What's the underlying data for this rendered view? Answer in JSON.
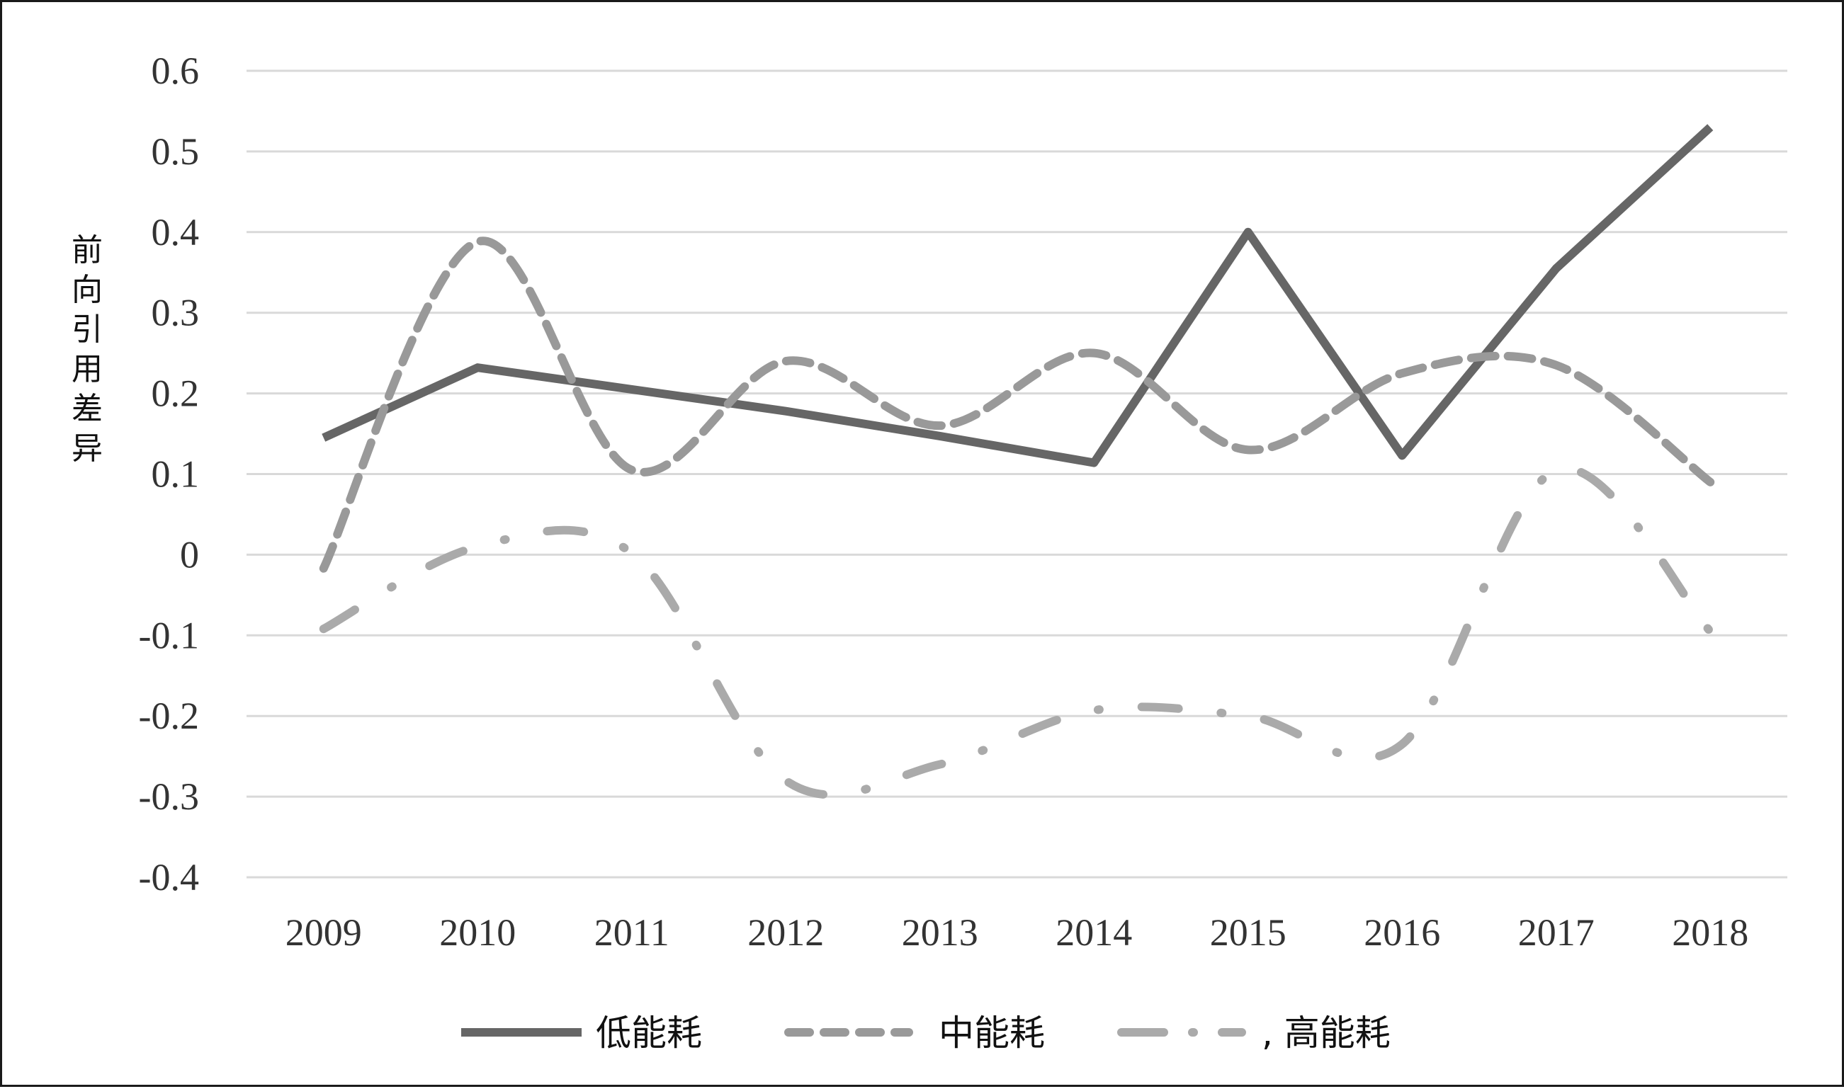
{
  "chart_data": {
    "type": "line",
    "title": "",
    "xlabel": "",
    "ylabel": "前向引用差异",
    "categories": [
      "2009",
      "2010",
      "2011",
      "2012",
      "2013",
      "2014",
      "2015",
      "2016",
      "2017",
      "2018"
    ],
    "y_ticks": [
      "0.6",
      "0.5",
      "0.4",
      "0.3",
      "0.2",
      "0.1",
      "0",
      "-0.1",
      "-0.2",
      "-0.3",
      "-0.4"
    ],
    "ylim": [
      -0.4,
      0.6
    ],
    "grid": "horizontal",
    "legend_position": "bottom",
    "series": [
      {
        "name": "低能耗",
        "style": "solid",
        "color": "#666666",
        "values": [
          0.145,
          0.232,
          0.205,
          0.178,
          0.147,
          0.114,
          0.4,
          0.123,
          0.355,
          0.53
        ]
      },
      {
        "name": "中能耗",
        "style": "dashed",
        "color": "#999999",
        "values": [
          -0.017,
          0.388,
          0.105,
          0.24,
          0.16,
          0.25,
          0.13,
          0.225,
          0.235,
          0.09
        ]
      },
      {
        "name": "高能耗",
        "legend_prefix": ",",
        "style": "dash-dot",
        "color": "#aaaaaa",
        "values": [
          -0.092,
          0.01,
          0.002,
          -0.28,
          -0.26,
          -0.193,
          -0.2,
          -0.235,
          0.105,
          -0.095
        ]
      }
    ]
  }
}
